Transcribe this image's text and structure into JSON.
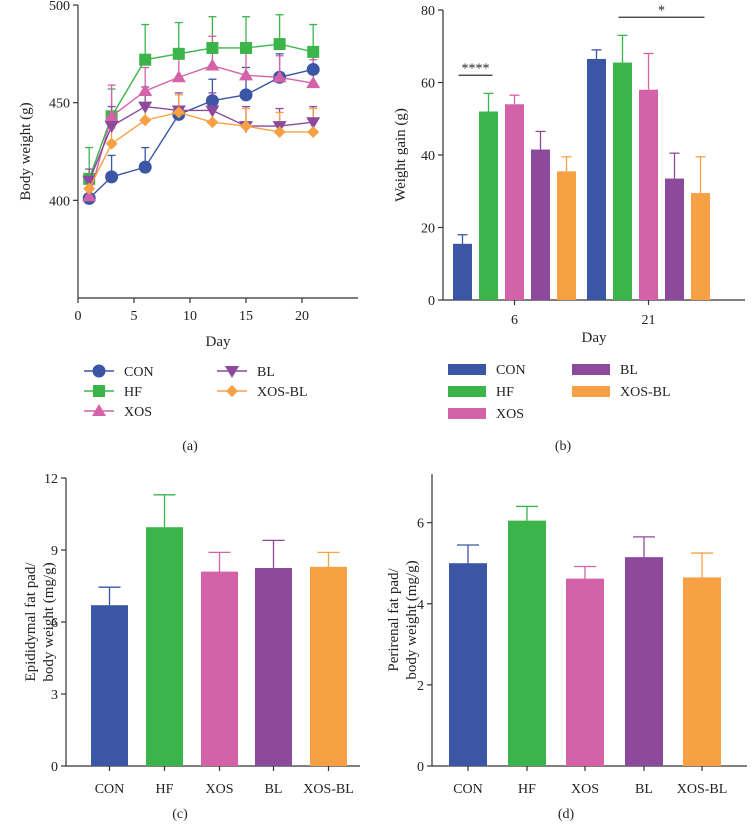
{
  "colors": {
    "CON": "#3a56a5",
    "HF": "#3bb54a",
    "XOS": "#d462a8",
    "BL": "#8d4a9c",
    "XOS-BL": "#f7a144",
    "axis": "#333333"
  },
  "chart_data": [
    {
      "id": "a",
      "type": "line",
      "panel_label": "(a)",
      "xlabel": "Day",
      "ylabel": "Body weight (g)",
      "xlim": [
        0,
        25
      ],
      "ylim": [
        350,
        500
      ],
      "xticks": [
        0,
        5,
        10,
        15,
        20
      ],
      "yticks": [
        400,
        450,
        500
      ],
      "x": [
        1,
        3,
        6,
        9,
        12,
        15,
        18,
        21
      ],
      "series": [
        {
          "name": "CON",
          "marker": "circle",
          "values": [
            401,
            412,
            417,
            444,
            451,
            454,
            463,
            467
          ],
          "err": [
            8,
            11,
            10,
            4,
            11,
            14,
            12,
            8
          ]
        },
        {
          "name": "HF",
          "marker": "square",
          "values": [
            411,
            443,
            472,
            475,
            478,
            478,
            480,
            476
          ],
          "err": [
            16,
            14,
            18,
            16,
            16,
            16,
            15,
            14
          ]
        },
        {
          "name": "XOS",
          "marker": "triangle",
          "values": [
            402,
            443,
            456,
            463,
            469,
            464,
            463,
            460
          ],
          "err": [
            8,
            16,
            12,
            14,
            15,
            12,
            11,
            12
          ]
        },
        {
          "name": "BL",
          "marker": "triangle-down",
          "values": [
            410,
            438,
            448,
            446,
            446,
            438,
            438,
            440
          ],
          "err": [
            6,
            10,
            10,
            9,
            9,
            10,
            9,
            8
          ]
        },
        {
          "name": "XOS-BL",
          "marker": "diamond",
          "values": [
            406,
            429,
            441,
            445,
            440,
            438,
            435,
            435
          ],
          "err": [
            5,
            8,
            8,
            9,
            8,
            9,
            10,
            12
          ]
        }
      ],
      "legend": [
        "CON",
        "HF",
        "XOS",
        "BL",
        "XOS-BL"
      ]
    },
    {
      "id": "b",
      "type": "bar",
      "panel_label": "(b)",
      "xlabel": "Day",
      "ylabel": "Weight gain (g)",
      "ylim": [
        0,
        80
      ],
      "yticks": [
        0,
        20,
        40,
        60,
        80
      ],
      "categories": [
        "6",
        "21"
      ],
      "series": [
        {
          "name": "CON",
          "values": [
            15.5,
            66.5
          ],
          "err": [
            2.5,
            2.5
          ]
        },
        {
          "name": "HF",
          "values": [
            52,
            65.5
          ],
          "err": [
            5,
            7.5
          ]
        },
        {
          "name": "XOS",
          "values": [
            54,
            58
          ],
          "err": [
            2.5,
            10
          ]
        },
        {
          "name": "BL",
          "values": [
            41.5,
            33.5
          ],
          "err": [
            5,
            7
          ]
        },
        {
          "name": "XOS-BL",
          "values": [
            35.5,
            29.5
          ],
          "err": [
            4,
            10
          ]
        }
      ],
      "annotations": [
        {
          "text": "****",
          "category": "6",
          "from": "CON",
          "to": "HF",
          "y": 62
        },
        {
          "text": "*",
          "category": "21",
          "from": "HF",
          "to": "XOS-BL",
          "y": 78
        }
      ],
      "legend": [
        "CON",
        "HF",
        "XOS",
        "BL",
        "XOS-BL"
      ]
    },
    {
      "id": "c",
      "type": "bar",
      "panel_label": "(c)",
      "xlabel": "",
      "ylabel_lines": [
        "Epididymal fat pad/",
        "body weight (mg/g)"
      ],
      "ylim": [
        0,
        12
      ],
      "yticks": [
        0,
        3,
        6,
        9,
        12
      ],
      "categories": [
        "CON",
        "HF",
        "XOS",
        "BL",
        "XOS-BL"
      ],
      "values": [
        6.7,
        9.95,
        8.1,
        8.25,
        8.3
      ],
      "err": [
        0.75,
        1.35,
        0.8,
        1.15,
        0.6
      ]
    },
    {
      "id": "d",
      "type": "bar",
      "panel_label": "(d)",
      "xlabel": "",
      "ylabel_lines": [
        "Perirenal fat pad/",
        "body weight (mg/g)"
      ],
      "ylim": [
        0,
        7.2
      ],
      "yticks": [
        0,
        2,
        4,
        6
      ],
      "categories": [
        "CON",
        "HF",
        "XOS",
        "BL",
        "XOS-BL"
      ],
      "values": [
        5.0,
        6.05,
        4.62,
        5.15,
        4.65
      ],
      "err": [
        0.45,
        0.35,
        0.3,
        0.5,
        0.6
      ]
    }
  ]
}
